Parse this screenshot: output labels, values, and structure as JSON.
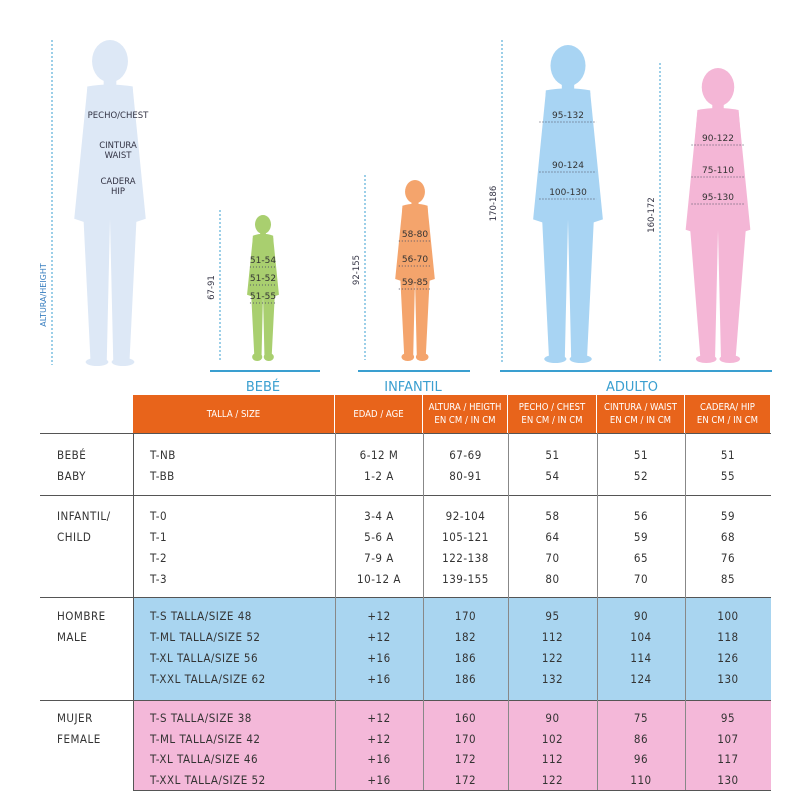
{
  "figures": {
    "reference": {
      "height": "ALTURA/HEIGHT",
      "chest": [
        "PECHO/CHEST"
      ],
      "waist": [
        "CINTURA",
        "WAIST"
      ],
      "hip": [
        "CADERA",
        "HIP"
      ]
    },
    "baby": {
      "height": "67-91",
      "chest": "51-54",
      "waist": "51-52",
      "hip": "51-55"
    },
    "child": {
      "height": "92-155",
      "chest": "58-80",
      "waist": "56-70",
      "hip": "59-85"
    },
    "man": {
      "height": "170-186",
      "chest": "95-132",
      "waist": "90-124",
      "hip": "100-130"
    },
    "woman": {
      "height": "160-172",
      "chest": "90-122",
      "waist": "75-110",
      "hip": "95-130"
    }
  },
  "sections": [
    "BEBÉ",
    "INFANTIL",
    "ADULTO"
  ],
  "table": {
    "header": [
      [
        "TALLA / SIZE"
      ],
      [
        "EDAD / AGE"
      ],
      [
        "ALTURA / HEIGTH",
        "EN CM / IN CM"
      ],
      [
        "PECHO / CHEST",
        "EN CM / IN CM"
      ],
      [
        "CINTURA / WAIST",
        "EN CM / IN CM"
      ],
      [
        "CADERA/ HIP",
        "EN CM / IN CM"
      ]
    ],
    "groups": [
      {
        "label": [
          "BEBÉ",
          "BABY"
        ],
        "rows": [
          [
            "T-NB",
            "6-12 M",
            "67-69",
            "51",
            "51",
            "51"
          ],
          [
            "T-BB",
            "1-2 A",
            "80-91",
            "54",
            "52",
            "55"
          ]
        ]
      },
      {
        "label": [
          "INFANTIL/",
          "CHILD"
        ],
        "rows": [
          [
            "T-0",
            "3-4 A",
            "92-104",
            "58",
            "56",
            "59"
          ],
          [
            "T-1",
            "5-6 A",
            "105-121",
            "64",
            "59",
            "68"
          ],
          [
            "T-2",
            "7-9 A",
            "122-138",
            "70",
            "65",
            "76"
          ],
          [
            "T-3",
            "10-12 A",
            "139-155",
            "80",
            "70",
            "85"
          ]
        ]
      },
      {
        "label": [
          "HOMBRE",
          "MALE"
        ],
        "rows": [
          [
            "T-S TALLA/SIZE 48",
            "+12",
            "170",
            "95",
            "90",
            "100"
          ],
          [
            "T-ML TALLA/SIZE 52",
            "+12",
            "182",
            "112",
            "104",
            "118"
          ],
          [
            "T-XL TALLA/SIZE 56",
            "+16",
            "186",
            "122",
            "114",
            "126"
          ],
          [
            "T-XXL TALLA/SIZE 62",
            "+16",
            "186",
            "132",
            "124",
            "130"
          ]
        ]
      },
      {
        "label": [
          "MUJER",
          "FEMALE"
        ],
        "rows": [
          [
            "T-S TALLA/SIZE 38",
            "+12",
            "160",
            "90",
            "75",
            "95"
          ],
          [
            "T-ML TALLA/SIZE 42",
            "+12",
            "170",
            "102",
            "86",
            "107"
          ],
          [
            "T-XL TALLA/SIZE 46",
            "+16",
            "172",
            "112",
            "96",
            "117"
          ],
          [
            "T-XXL TALLA/SIZE 52",
            "+16",
            "172",
            "122",
            "110",
            "130"
          ]
        ]
      }
    ]
  }
}
